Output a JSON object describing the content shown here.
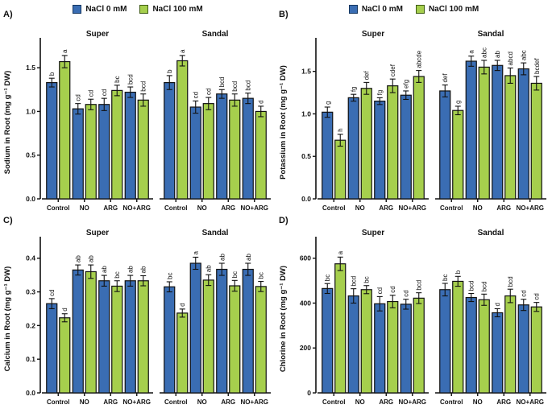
{
  "legend": {
    "items": [
      {
        "label": "NaCl 0 mM",
        "color": "#3a6db3",
        "border": "#14365f"
      },
      {
        "label": "NaCl 100 mM",
        "color": "#a6cf4d",
        "border": "#3f5c14"
      }
    ]
  },
  "chart_data": [
    {
      "panel_label": "A)",
      "type": "bar",
      "ylabel": "Sodium in Root (mg g⁻¹ DW)",
      "ylim": [
        0,
        1.75
      ],
      "yticks": [
        0,
        0.5,
        1.0,
        1.5
      ],
      "tick_decimals": 1,
      "grid": false,
      "legend_position": "top-center",
      "categories": [
        "Control",
        "NO",
        "ARG",
        "NO+ARG"
      ],
      "facets": [
        {
          "title": "Super",
          "series": [
            {
              "name": "NaCl 0 mM",
              "values": [
                1.33,
                1.03,
                1.08,
                1.22
              ],
              "errors": [
                0.05,
                0.06,
                0.07,
                0.06
              ],
              "letters": [
                "b",
                "cd",
                "cd",
                "bcd"
              ]
            },
            {
              "name": "NaCl 100 mM",
              "values": [
                1.57,
                1.08,
                1.24,
                1.13
              ],
              "errors": [
                0.07,
                0.06,
                0.06,
                0.07
              ],
              "letters": [
                "a",
                "cd",
                "bc",
                "bcd"
              ]
            }
          ]
        },
        {
          "title": "Sandal",
          "series": [
            {
              "name": "NaCl 0 mM",
              "values": [
                1.33,
                1.05,
                1.2,
                1.15
              ],
              "errors": [
                0.08,
                0.07,
                0.05,
                0.06
              ],
              "letters": [
                "b",
                "cd",
                "bcd",
                "bcd"
              ]
            },
            {
              "name": "NaCl 100 mM",
              "values": [
                1.58,
                1.09,
                1.13,
                1.0
              ],
              "errors": [
                0.06,
                0.07,
                0.07,
                0.06
              ],
              "letters": [
                "a",
                "cd",
                "bcd",
                "d"
              ]
            }
          ]
        }
      ]
    },
    {
      "panel_label": "B)",
      "type": "bar",
      "ylabel": "Potassium in Root (mg g⁻¹ DW)",
      "ylim": [
        0,
        1.8
      ],
      "yticks": [
        0,
        0.5,
        1.0,
        1.5
      ],
      "tick_decimals": 1,
      "grid": false,
      "legend_position": "top-center",
      "categories": [
        "Control",
        "NO",
        "ARG",
        "NO+ARG"
      ],
      "facets": [
        {
          "title": "Super",
          "series": [
            {
              "name": "NaCl 0 mM",
              "values": [
                1.02,
                1.19,
                1.15,
                1.22
              ],
              "errors": [
                0.06,
                0.04,
                0.04,
                0.05
              ],
              "letters": [
                "g",
                "fg",
                "fg",
                "efg"
              ]
            },
            {
              "name": "NaCl 100 mM",
              "values": [
                0.69,
                1.3,
                1.33,
                1.44
              ],
              "errors": [
                0.07,
                0.07,
                0.08,
                0.07
              ],
              "letters": [
                "h",
                "def",
                "cdef",
                "abcde"
              ]
            }
          ]
        },
        {
          "title": "Sandal",
          "series": [
            {
              "name": "NaCl 0 mM",
              "values": [
                1.27,
                1.62,
                1.57,
                1.53
              ],
              "errors": [
                0.07,
                0.06,
                0.06,
                0.07
              ],
              "letters": [
                "def",
                "a",
                "ab",
                "abc"
              ]
            },
            {
              "name": "NaCl 100 mM",
              "values": [
                1.04,
                1.55,
                1.45,
                1.36
              ],
              "errors": [
                0.05,
                0.08,
                0.09,
                0.08
              ],
              "letters": [
                "g",
                "abc",
                "abcd",
                "bcdef"
              ]
            }
          ]
        }
      ]
    },
    {
      "panel_label": "C)",
      "type": "bar",
      "ylabel": "Calcium in Root (mg g⁻¹ DW)",
      "ylim": [
        0,
        0.44
      ],
      "yticks": [
        0,
        0.1,
        0.2,
        0.3,
        0.4
      ],
      "tick_decimals": 1,
      "grid": false,
      "legend_position": "none",
      "categories": [
        "Control",
        "NO",
        "ARG",
        "NO+ARG"
      ],
      "facets": [
        {
          "title": "Super",
          "series": [
            {
              "name": "NaCl 0 mM",
              "values": [
                0.265,
                0.365,
                0.333,
                0.333
              ],
              "errors": [
                0.015,
                0.015,
                0.016,
                0.016
              ],
              "letters": [
                "cd",
                "ab",
                "ab",
                "ab"
              ]
            },
            {
              "name": "NaCl 100 mM",
              "values": [
                0.223,
                0.36,
                0.317,
                0.333
              ],
              "errors": [
                0.012,
                0.02,
                0.016,
                0.015
              ],
              "letters": [
                "d",
                "ab",
                "bc",
                "ab"
              ]
            }
          ]
        },
        {
          "title": "Sandal",
          "series": [
            {
              "name": "NaCl 0 mM",
              "values": [
                0.315,
                0.385,
                0.367,
                0.367
              ],
              "errors": [
                0.015,
                0.018,
                0.018,
                0.018
              ],
              "letters": [
                "bc",
                "a",
                "ab",
                "ab"
              ]
            },
            {
              "name": "NaCl 100 mM",
              "values": [
                0.237,
                0.335,
                0.318,
                0.316
              ],
              "errors": [
                0.012,
                0.016,
                0.016,
                0.015
              ],
              "letters": [
                "d",
                "ab",
                "bc",
                "bc"
              ]
            }
          ]
        }
      ]
    },
    {
      "panel_label": "D)",
      "type": "bar",
      "ylabel": "Chlorine in Root (mg g⁻¹ DW)",
      "ylim": [
        0,
        660
      ],
      "yticks": [
        0,
        200,
        400,
        600
      ],
      "tick_decimals": 0,
      "grid": false,
      "legend_position": "none",
      "categories": [
        "Control",
        "NO",
        "ARG",
        "NO+ARG"
      ],
      "facets": [
        {
          "title": "Super",
          "series": [
            {
              "name": "NaCl 0 mM",
              "values": [
                465,
                432,
                397,
                395
              ],
              "errors": [
                22,
                32,
                32,
                22
              ],
              "letters": [
                "bc",
                "bcd",
                "cd",
                "cd"
              ]
            },
            {
              "name": "NaCl 100 mM",
              "values": [
                575,
                460,
                407,
                422
              ],
              "errors": [
                30,
                18,
                28,
                24
              ],
              "letters": [
                "a",
                "bc",
                "cd",
                "bcd"
              ]
            }
          ]
        },
        {
          "title": "Sandal",
          "series": [
            {
              "name": "NaCl 0 mM",
              "values": [
                460,
                425,
                357,
                392
              ],
              "errors": [
                28,
                18,
                18,
                25
              ],
              "letters": [
                "bc",
                "bcd",
                "d",
                "cd"
              ]
            },
            {
              "name": "NaCl 100 mM",
              "values": [
                497,
                415,
                432,
                383
              ],
              "errors": [
                22,
                25,
                30,
                20
              ],
              "letters": [
                "b",
                "bcd",
                "bcd",
                "cd"
              ]
            }
          ]
        }
      ]
    }
  ]
}
